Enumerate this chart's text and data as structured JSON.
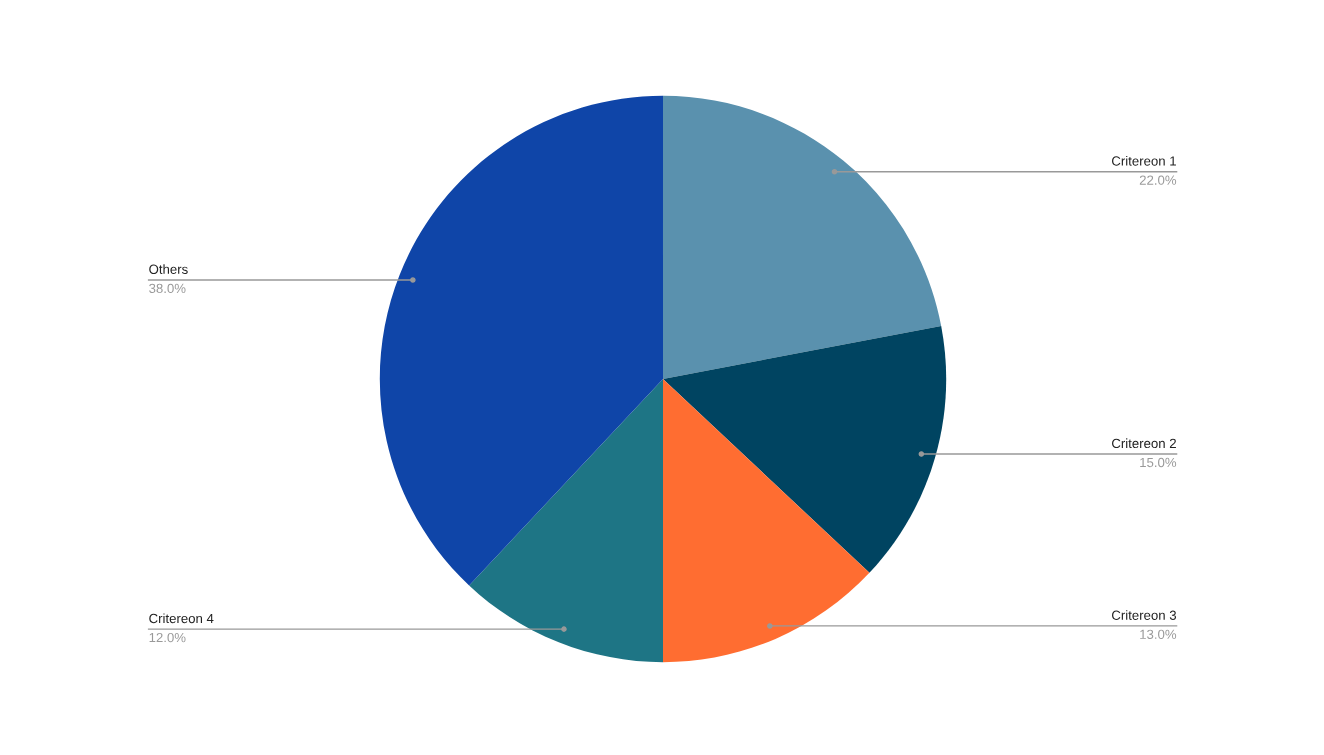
{
  "chart_data": {
    "type": "pie",
    "categories": [
      "Critereon 1",
      "Critereon 2",
      "Critereon 3",
      "Critereon 4",
      "Others"
    ],
    "values": [
      22,
      15,
      13,
      12,
      38
    ],
    "value_labels": [
      "22.0%",
      "15.0%",
      "13.0%",
      "12.0%",
      "38.0%"
    ],
    "colors": [
      "#5a91ae",
      "#004461",
      "#ff6d31",
      "#1e7585",
      "#0f45a8"
    ],
    "legend": false
  }
}
